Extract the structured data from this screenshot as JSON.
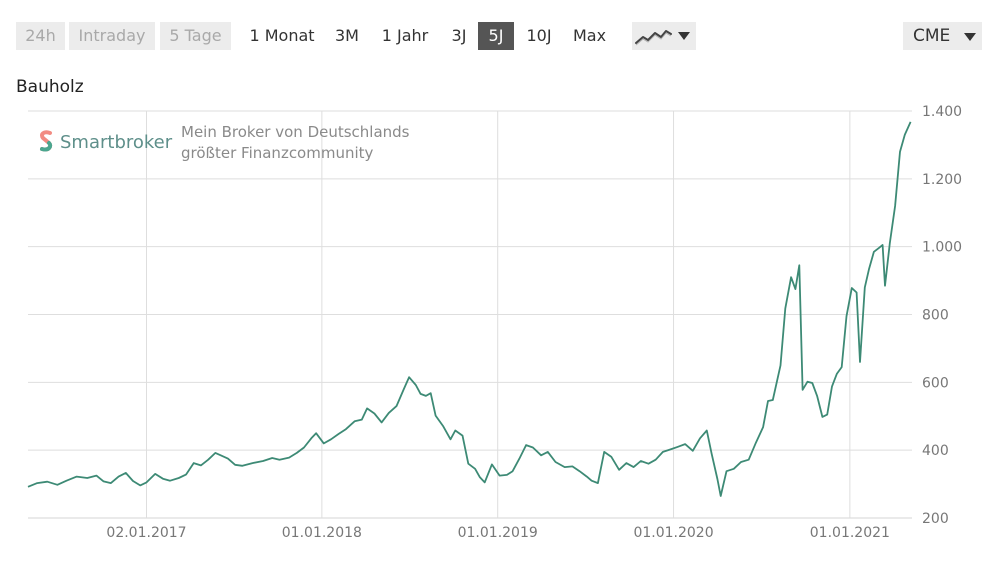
{
  "toolbar": {
    "ranges": [
      {
        "label": "24h",
        "state": "disabled"
      },
      {
        "label": "Intraday",
        "state": "disabled"
      },
      {
        "label": "5 Tage",
        "state": "disabled"
      },
      {
        "label": "1 Monat",
        "state": "normal"
      },
      {
        "label": "3M",
        "state": "normal"
      },
      {
        "label": "1 Jahr",
        "state": "normal"
      },
      {
        "label": "3J",
        "state": "normal"
      },
      {
        "label": "5J",
        "state": "active"
      },
      {
        "label": "10J",
        "state": "normal"
      },
      {
        "label": "Max",
        "state": "normal"
      }
    ],
    "chart_type_icon": "line-chart-icon",
    "exchange": "CME"
  },
  "watermark": {
    "brand": "Smartbroker",
    "tagline_line1": "Mein Broker von Deutschlands",
    "tagline_line2": "größter Finanzcommunity"
  },
  "chart_data": {
    "type": "line",
    "title": "Bauholz",
    "xlabel": "",
    "ylabel": "",
    "ylim": [
      200,
      1400
    ],
    "yticks": [
      200,
      400,
      600,
      800,
      1000,
      1200,
      1400
    ],
    "ytick_labels": [
      "200",
      "400",
      "600",
      "800",
      "1.000",
      "1.200",
      "1.400"
    ],
    "xticks": [
      "2017-01-02",
      "2018-01-01",
      "2019-01-01",
      "2020-01-01",
      "2021-01-01"
    ],
    "xtick_labels": [
      "02.01.2017",
      "01.01.2018",
      "01.01.2019",
      "01.01.2020",
      "01.01.2021"
    ],
    "xlim": [
      "2016-05-01",
      "2021-05-10"
    ],
    "grid": true,
    "line_color": "#3d8a75",
    "series": [
      {
        "points": [
          [
            "2016-05-01",
            292
          ],
          [
            "2016-05-20",
            303
          ],
          [
            "2016-06-10",
            307
          ],
          [
            "2016-07-01",
            298
          ],
          [
            "2016-07-20",
            310
          ],
          [
            "2016-08-10",
            322
          ],
          [
            "2016-09-01",
            318
          ],
          [
            "2016-09-20",
            325
          ],
          [
            "2016-10-05",
            308
          ],
          [
            "2016-10-20",
            303
          ],
          [
            "2016-11-05",
            322
          ],
          [
            "2016-11-20",
            333
          ],
          [
            "2016-12-05",
            309
          ],
          [
            "2016-12-20",
            296
          ],
          [
            "2017-01-02",
            305
          ],
          [
            "2017-01-20",
            330
          ],
          [
            "2017-02-05",
            316
          ],
          [
            "2017-02-20",
            310
          ],
          [
            "2017-03-10",
            318
          ],
          [
            "2017-03-25",
            328
          ],
          [
            "2017-04-10",
            362
          ],
          [
            "2017-04-25",
            355
          ],
          [
            "2017-05-10",
            372
          ],
          [
            "2017-05-25",
            392
          ],
          [
            "2017-06-05",
            385
          ],
          [
            "2017-06-20",
            375
          ],
          [
            "2017-07-05",
            357
          ],
          [
            "2017-07-20",
            354
          ],
          [
            "2017-08-10",
            362
          ],
          [
            "2017-09-01",
            368
          ],
          [
            "2017-09-20",
            377
          ],
          [
            "2017-10-05",
            372
          ],
          [
            "2017-10-25",
            378
          ],
          [
            "2017-11-10",
            392
          ],
          [
            "2017-11-25",
            408
          ],
          [
            "2017-12-10",
            435
          ],
          [
            "2017-12-20",
            450
          ],
          [
            "2018-01-05",
            420
          ],
          [
            "2018-01-20",
            432
          ],
          [
            "2018-02-05",
            448
          ],
          [
            "2018-02-20",
            462
          ],
          [
            "2018-03-10",
            485
          ],
          [
            "2018-03-25",
            490
          ],
          [
            "2018-04-05",
            523
          ],
          [
            "2018-04-20",
            508
          ],
          [
            "2018-05-05",
            482
          ],
          [
            "2018-05-20",
            510
          ],
          [
            "2018-06-05",
            530
          ],
          [
            "2018-06-20",
            580
          ],
          [
            "2018-07-01",
            615
          ],
          [
            "2018-07-15",
            592
          ],
          [
            "2018-07-25",
            566
          ],
          [
            "2018-08-05",
            560
          ],
          [
            "2018-08-15",
            568
          ],
          [
            "2018-08-25",
            502
          ],
          [
            "2018-09-10",
            470
          ],
          [
            "2018-09-25",
            432
          ],
          [
            "2018-10-05",
            458
          ],
          [
            "2018-10-20",
            443
          ],
          [
            "2018-11-01",
            360
          ],
          [
            "2018-11-15",
            345
          ],
          [
            "2018-11-25",
            320
          ],
          [
            "2018-12-05",
            305
          ],
          [
            "2018-12-20",
            358
          ],
          [
            "2019-01-05",
            325
          ],
          [
            "2019-01-20",
            327
          ],
          [
            "2019-02-01",
            338
          ],
          [
            "2019-02-15",
            375
          ],
          [
            "2019-03-01",
            415
          ],
          [
            "2019-03-15",
            408
          ],
          [
            "2019-04-01",
            385
          ],
          [
            "2019-04-15",
            395
          ],
          [
            "2019-05-01",
            365
          ],
          [
            "2019-05-20",
            350
          ],
          [
            "2019-06-05",
            352
          ],
          [
            "2019-06-20",
            338
          ],
          [
            "2019-07-05",
            322
          ],
          [
            "2019-07-15",
            310
          ],
          [
            "2019-07-28",
            303
          ],
          [
            "2019-08-10",
            395
          ],
          [
            "2019-08-25",
            380
          ],
          [
            "2019-09-10",
            342
          ],
          [
            "2019-09-25",
            362
          ],
          [
            "2019-10-10",
            350
          ],
          [
            "2019-10-25",
            368
          ],
          [
            "2019-11-10",
            360
          ],
          [
            "2019-11-25",
            372
          ],
          [
            "2019-12-10",
            395
          ],
          [
            "2019-12-25",
            402
          ],
          [
            "2020-01-10",
            410
          ],
          [
            "2020-01-25",
            418
          ],
          [
            "2020-02-10",
            398
          ],
          [
            "2020-02-25",
            435
          ],
          [
            "2020-03-10",
            458
          ],
          [
            "2020-03-20",
            390
          ],
          [
            "2020-04-01",
            315
          ],
          [
            "2020-04-08",
            265
          ],
          [
            "2020-04-20",
            338
          ],
          [
            "2020-05-05",
            345
          ],
          [
            "2020-05-20",
            365
          ],
          [
            "2020-06-05",
            372
          ],
          [
            "2020-06-20",
            422
          ],
          [
            "2020-07-05",
            468
          ],
          [
            "2020-07-15",
            545
          ],
          [
            "2020-07-25",
            548
          ],
          [
            "2020-08-10",
            650
          ],
          [
            "2020-08-20",
            818
          ],
          [
            "2020-09-01",
            910
          ],
          [
            "2020-09-10",
            875
          ],
          [
            "2020-09-18",
            945
          ],
          [
            "2020-09-25",
            578
          ],
          [
            "2020-10-05",
            602
          ],
          [
            "2020-10-15",
            598
          ],
          [
            "2020-10-25",
            560
          ],
          [
            "2020-11-05",
            498
          ],
          [
            "2020-11-15",
            505
          ],
          [
            "2020-11-25",
            588
          ],
          [
            "2020-12-05",
            625
          ],
          [
            "2020-12-15",
            645
          ],
          [
            "2020-12-25",
            795
          ],
          [
            "2021-01-05",
            878
          ],
          [
            "2021-01-15",
            865
          ],
          [
            "2021-01-22",
            660
          ],
          [
            "2021-02-01",
            880
          ],
          [
            "2021-02-10",
            935
          ],
          [
            "2021-02-20",
            985
          ],
          [
            "2021-03-01",
            995
          ],
          [
            "2021-03-10",
            1005
          ],
          [
            "2021-03-15",
            885
          ],
          [
            "2021-03-25",
            1010
          ],
          [
            "2021-04-05",
            1120
          ],
          [
            "2021-04-15",
            1280
          ],
          [
            "2021-04-25",
            1330
          ],
          [
            "2021-05-07",
            1368
          ]
        ]
      }
    ]
  }
}
